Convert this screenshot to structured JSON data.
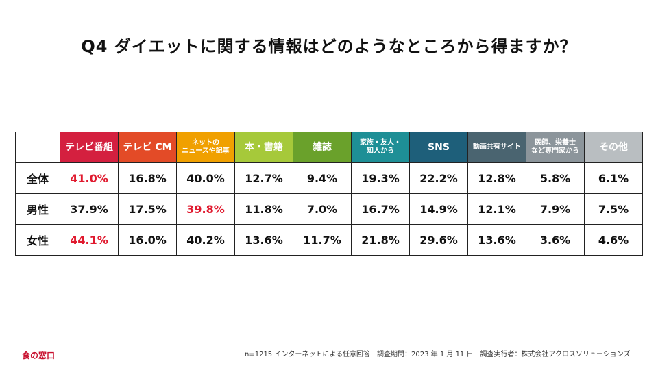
{
  "title": "Q4 ダイエットに関する情報はどのようなところから得ますか？",
  "chart_data": {
    "type": "table",
    "title": "Q4 ダイエットに関する情報はどのようなところから得ますか？",
    "columns": [
      {
        "label": "テレビ番組",
        "color": "#d4203f"
      },
      {
        "label": "テレビ CM",
        "color": "#e34b27"
      },
      {
        "label": "ネットの\nニュースや記事",
        "color": "#f0a000"
      },
      {
        "label": "本・書籍",
        "color": "#a6c93a"
      },
      {
        "label": "雑誌",
        "color": "#6aa12b"
      },
      {
        "label": "家族・友人・\n知人から",
        "color": "#1e8f96"
      },
      {
        "label": "SNS",
        "color": "#1e5f7a"
      },
      {
        "label": "動画共有サイト",
        "color": "#4a6470"
      },
      {
        "label": "医師、栄養士\nなど専門家から",
        "color": "#8c959b"
      },
      {
        "label": "その他",
        "color": "#b9bec1"
      }
    ],
    "rows": [
      {
        "label": "全体",
        "values": [
          "41.0%",
          "16.8%",
          "40.0%",
          "12.7%",
          "9.4%",
          "19.3%",
          "22.2%",
          "12.8%",
          "5.8%",
          "6.1%"
        ],
        "highlight": [
          0
        ]
      },
      {
        "label": "男性",
        "values": [
          "37.9%",
          "17.5%",
          "39.8%",
          "11.8%",
          "7.0%",
          "16.7%",
          "14.9%",
          "12.1%",
          "7.9%",
          "7.5%"
        ],
        "highlight": [
          2
        ]
      },
      {
        "label": "女性",
        "values": [
          "44.1%",
          "16.0%",
          "40.2%",
          "13.6%",
          "11.7%",
          "21.8%",
          "29.6%",
          "13.6%",
          "3.6%",
          "4.6%"
        ],
        "highlight": [
          0
        ]
      }
    ]
  },
  "footer": {
    "logo": "食の窓口",
    "note": "n=1215 インターネットによる任意回答　調査期間：2023 年 1 月 11 日　調査実行者：株式会社アクロスソリューションズ"
  }
}
